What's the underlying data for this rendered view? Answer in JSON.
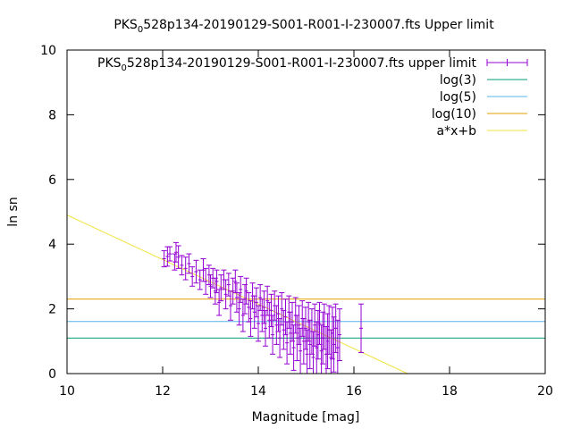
{
  "chart_data": {
    "type": "scatter",
    "title": {
      "pre": "PKS",
      "sub": "0",
      "post": "528p134-20190129-S001-R001-I-230007.fts Upper limit"
    },
    "xlabel": "Magnitude [mag]",
    "ylabel": "ln sn",
    "xlim": [
      10,
      20
    ],
    "ylim": [
      0,
      10
    ],
    "x_ticks": [
      10,
      12,
      14,
      16,
      18,
      20
    ],
    "y_ticks": [
      0,
      2,
      4,
      6,
      8,
      10
    ],
    "grid": false,
    "legend_position": "top-right",
    "colors": {
      "points": "#9400d3",
      "log3": "#009e73",
      "log5": "#56b4e9",
      "log10": "#e69f00",
      "fit": "#f0e442"
    },
    "legend": [
      {
        "pre": "PKS",
        "sub": "0",
        "post": "528p134-20190129-S001-R001-I-230007.fts upper limit",
        "key": "points"
      },
      {
        "text": "log(3)",
        "key": "log3"
      },
      {
        "text": "log(5)",
        "key": "log5"
      },
      {
        "text": "log(10)",
        "key": "log10"
      },
      {
        "text": "a*x+b",
        "key": "fit"
      }
    ],
    "hlines": [
      {
        "name": "log(3)",
        "y": 1.0986,
        "key": "log3"
      },
      {
        "name": "log(5)",
        "y": 1.6094,
        "key": "log5"
      },
      {
        "name": "log(10)",
        "y": 2.3026,
        "key": "log10"
      }
    ],
    "fit_line": {
      "name": "a*x+b",
      "x": [
        10.0,
        17.12
      ],
      "y": [
        4.9,
        0.0
      ],
      "key": "fit"
    },
    "series": [
      {
        "name": "PKS 0528p134-20190129-S001-R001-I-230007.fts upper limit",
        "points": [
          [
            12.03,
            3.55,
            0.25
          ],
          [
            12.1,
            3.62,
            0.3
          ],
          [
            12.15,
            3.7,
            0.22
          ],
          [
            12.25,
            3.45,
            0.25
          ],
          [
            12.28,
            3.75,
            0.3
          ],
          [
            12.33,
            3.6,
            0.35
          ],
          [
            12.4,
            3.35,
            0.3
          ],
          [
            12.48,
            3.25,
            0.35
          ],
          [
            12.55,
            3.4,
            0.3
          ],
          [
            12.62,
            3.0,
            0.3
          ],
          [
            12.7,
            3.15,
            0.35
          ],
          [
            12.78,
            2.9,
            0.3
          ],
          [
            12.85,
            3.2,
            0.35
          ],
          [
            12.9,
            2.85,
            0.4
          ],
          [
            12.97,
            3.05,
            0.3
          ],
          [
            13.0,
            2.7,
            0.35
          ],
          [
            13.05,
            2.95,
            0.3
          ],
          [
            13.1,
            2.55,
            0.4
          ],
          [
            13.13,
            2.85,
            0.35
          ],
          [
            13.18,
            2.2,
            0.4
          ],
          [
            13.22,
            2.65,
            0.4
          ],
          [
            13.28,
            2.9,
            0.3
          ],
          [
            13.32,
            2.45,
            0.45
          ],
          [
            13.38,
            2.75,
            0.35
          ],
          [
            13.42,
            2.1,
            0.45
          ],
          [
            13.47,
            2.55,
            0.4
          ],
          [
            13.52,
            2.85,
            0.35
          ],
          [
            13.55,
            2.35,
            0.45
          ],
          [
            13.6,
            2.0,
            0.5
          ],
          [
            13.63,
            2.6,
            0.4
          ],
          [
            13.68,
            1.8,
            0.5
          ],
          [
            13.72,
            2.3,
            0.45
          ],
          [
            13.75,
            2.55,
            0.4
          ],
          [
            13.8,
            2.05,
            0.45
          ],
          [
            13.84,
            1.7,
            0.55
          ],
          [
            13.88,
            2.4,
            0.4
          ],
          [
            13.92,
            1.9,
            0.5
          ],
          [
            13.96,
            2.2,
            0.45
          ],
          [
            14.0,
            1.55,
            0.55
          ],
          [
            14.04,
            2.35,
            0.4
          ],
          [
            14.08,
            1.8,
            0.5
          ],
          [
            14.12,
            2.05,
            0.5
          ],
          [
            14.15,
            1.4,
            0.55
          ],
          [
            14.19,
            2.25,
            0.45
          ],
          [
            14.23,
            1.65,
            0.55
          ],
          [
            14.27,
            1.95,
            0.5
          ],
          [
            14.3,
            1.2,
            0.6
          ],
          [
            14.34,
            2.1,
            0.45
          ],
          [
            14.38,
            1.5,
            0.6
          ],
          [
            14.42,
            1.85,
            0.55
          ],
          [
            14.45,
            1.1,
            0.6
          ],
          [
            14.49,
            2.0,
            0.5
          ],
          [
            14.53,
            1.35,
            0.6
          ],
          [
            14.57,
            1.75,
            0.55
          ],
          [
            14.6,
            0.95,
            0.65
          ],
          [
            14.64,
            1.9,
            0.5
          ],
          [
            14.67,
            1.25,
            0.65
          ],
          [
            14.71,
            1.6,
            0.6
          ],
          [
            14.74,
            0.8,
            0.7
          ],
          [
            14.78,
            1.8,
            0.55
          ],
          [
            14.81,
            1.1,
            0.7
          ],
          [
            14.85,
            1.5,
            0.6
          ],
          [
            14.88,
            0.7,
            0.7
          ],
          [
            14.92,
            1.7,
            0.55
          ],
          [
            14.95,
            1.0,
            0.7
          ],
          [
            14.99,
            1.4,
            0.65
          ],
          [
            15.02,
            0.6,
            0.75
          ],
          [
            15.05,
            1.6,
            0.6
          ],
          [
            15.08,
            0.9,
            0.75
          ],
          [
            15.12,
            1.3,
            0.7
          ],
          [
            15.15,
            0.5,
            0.8
          ],
          [
            15.18,
            1.5,
            0.65
          ],
          [
            15.22,
            0.8,
            0.8
          ],
          [
            15.25,
            1.2,
            0.75
          ],
          [
            15.28,
            1.55,
            0.65
          ],
          [
            15.32,
            0.7,
            0.8
          ],
          [
            15.35,
            1.1,
            0.8
          ],
          [
            15.38,
            1.45,
            0.7
          ],
          [
            15.42,
            0.6,
            0.85
          ],
          [
            15.45,
            1.0,
            0.85
          ],
          [
            15.48,
            1.35,
            0.75
          ],
          [
            15.52,
            0.5,
            0.85
          ],
          [
            15.55,
            1.25,
            0.8
          ],
          [
            15.58,
            0.9,
            0.85
          ],
          [
            15.62,
            1.4,
            0.75
          ],
          [
            15.66,
            0.8,
            0.85
          ],
          [
            15.7,
            1.2,
            0.8
          ],
          [
            16.15,
            1.4,
            0.75
          ]
        ]
      }
    ]
  }
}
